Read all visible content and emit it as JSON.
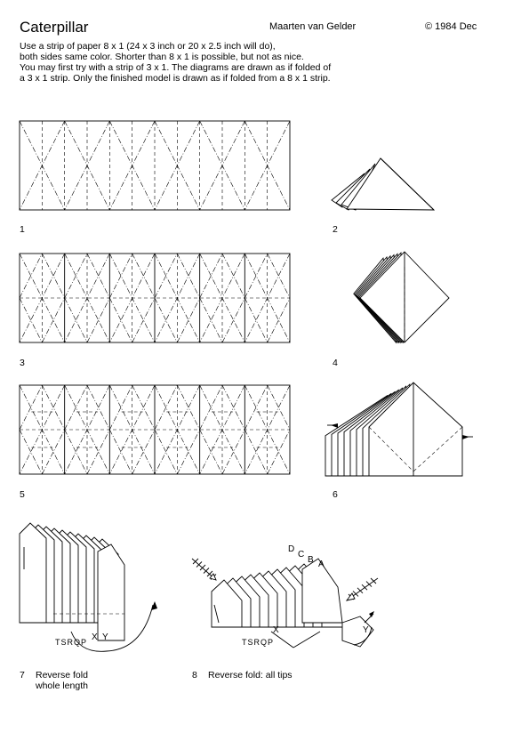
{
  "header": {
    "title": "Caterpillar",
    "author": "Maarten van Gelder",
    "date": "© 1984 Dec"
  },
  "intro": [
    "Use a strip of paper 8 x 1 (24 x 3 inch or 20 x 2.5 inch will do),",
    "both sides same color. Shorter than 8 x 1 is possible, but not as nice.",
    "You may first try with a strip of 3 x 1. The diagrams are drawn as if folded of",
    "a 3 x 1 strip. Only the finished model is drawn as if folded from a 8 x 1 strip."
  ],
  "steps": [
    {
      "num": "1",
      "text": ""
    },
    {
      "num": "2",
      "text": ""
    },
    {
      "num": "3",
      "text": ""
    },
    {
      "num": "4",
      "text": ""
    },
    {
      "num": "5",
      "text": ""
    },
    {
      "num": "6",
      "text": ""
    },
    {
      "num": "7",
      "text": "Reverse fold",
      "text2": "whole length"
    },
    {
      "num": "8",
      "text": "Reverse fold: all tips"
    }
  ],
  "diagram_labels": {
    "step7_marks": [
      "X",
      "Y"
    ],
    "step7_letters": "TSRQP",
    "step8_tips": [
      "D",
      "C",
      "B",
      "A"
    ],
    "step8_marks": [
      "X",
      "Y"
    ],
    "step8_letters": "TSRQP"
  }
}
